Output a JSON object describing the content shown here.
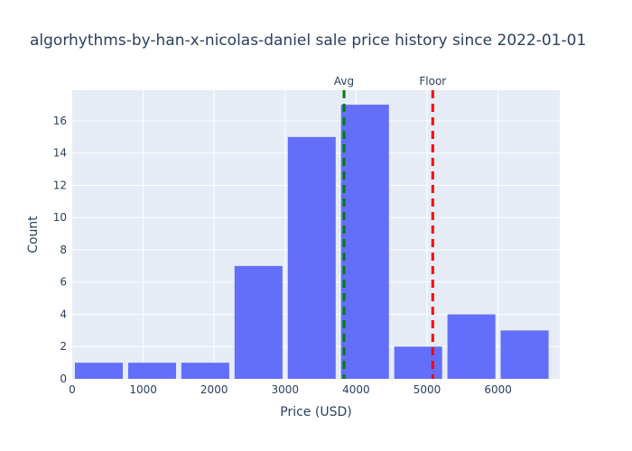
{
  "chart_data": {
    "type": "bar",
    "title": "algorhythms-by-han-x-nicolas-daniel sale price history since 2022-01-01",
    "xlabel": "Price (USD)",
    "ylabel": "Count",
    "bins": [
      {
        "start": 0,
        "end": 750,
        "count": 1
      },
      {
        "start": 750,
        "end": 1500,
        "count": 1
      },
      {
        "start": 1500,
        "end": 2250,
        "count": 1
      },
      {
        "start": 2250,
        "end": 3000,
        "count": 7
      },
      {
        "start": 3000,
        "end": 3750,
        "count": 15
      },
      {
        "start": 3750,
        "end": 4500,
        "count": 17
      },
      {
        "start": 4500,
        "end": 5250,
        "count": 2
      },
      {
        "start": 5250,
        "end": 6000,
        "count": 4
      },
      {
        "start": 6000,
        "end": 6750,
        "count": 3
      }
    ],
    "xlim": [
      0,
      6870
    ],
    "ylim": [
      0,
      17.9
    ],
    "xticks": [
      0,
      1000,
      2000,
      3000,
      4000,
      5000,
      6000
    ],
    "yticks": [
      0,
      2,
      4,
      6,
      8,
      10,
      12,
      14,
      16
    ],
    "vlines": [
      {
        "label": "Avg",
        "x": 3830,
        "color": "#008000"
      },
      {
        "label": "Floor",
        "x": 5080,
        "color": "#ff0000"
      }
    ],
    "colors": {
      "bar": "#636efa",
      "plot_bg": "#e5ecf6",
      "grid": "#ffffff",
      "text": "#2a3f5f"
    },
    "grid": true,
    "legend": "none"
  }
}
